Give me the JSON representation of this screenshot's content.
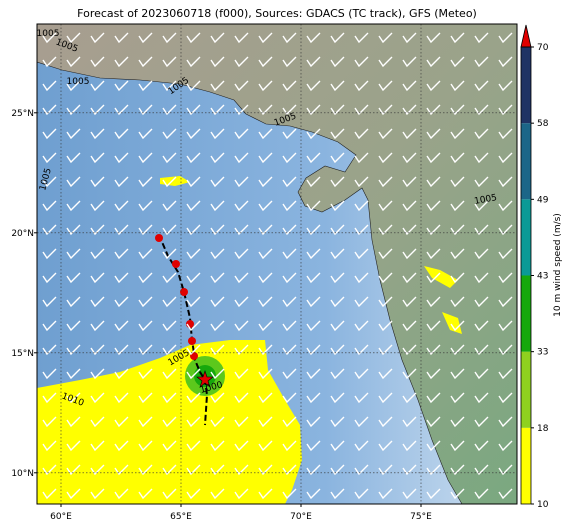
{
  "map": {
    "title": "Forecast of 2023060718 (f000), Sources: GDACS (TC track), GFS (Meteo)",
    "lonlim": [
      59,
      79
    ],
    "latlim": [
      8.7,
      28.7
    ],
    "lonticks": [
      {
        "value": 60,
        "label": "60°E"
      },
      {
        "value": 65,
        "label": "65°E"
      },
      {
        "value": 70,
        "label": "70°E"
      },
      {
        "value": 75,
        "label": "75°E"
      }
    ],
    "latticks": [
      {
        "value": 10,
        "label": "10°N"
      },
      {
        "value": 15,
        "label": "15°N"
      },
      {
        "value": 20,
        "label": "20°N"
      },
      {
        "value": 25,
        "label": "25°N"
      }
    ],
    "grid": true,
    "isobar_labels": [
      1005,
      1005,
      1005,
      1005,
      1005,
      1005,
      1005,
      1010,
      1005,
      1000
    ],
    "colorbar": {
      "label": "10 m wind speed (m/s)",
      "ticks": [
        10,
        18,
        33,
        43,
        49,
        58,
        70
      ],
      "colors": [
        "#ffff00",
        "#8fd11f",
        "#16a80c",
        "#0a9a96",
        "#1c6688",
        "#1f3364"
      ],
      "extend_color": "#e00000"
    }
  }
}
